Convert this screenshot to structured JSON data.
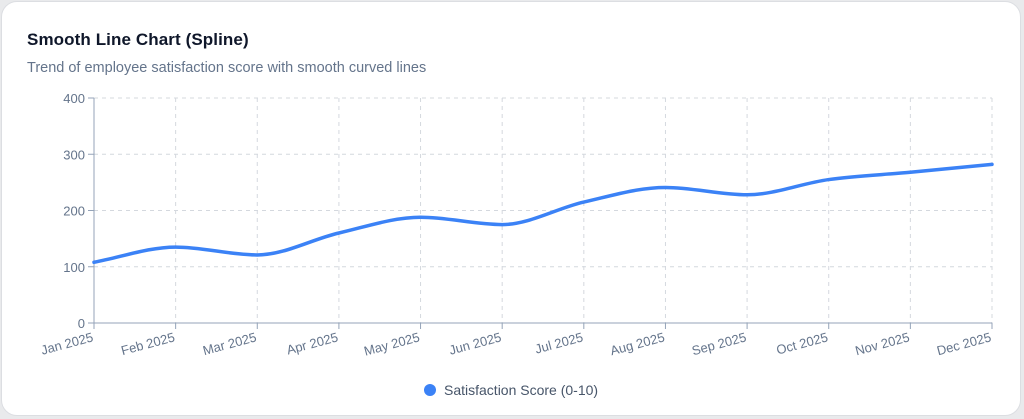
{
  "card": {
    "title": "Smooth Line Chart (Spline)",
    "subtitle": "Trend of employee satisfaction score with smooth curved lines"
  },
  "chart_data": {
    "type": "line",
    "smooth": true,
    "categories": [
      "Jan 2025",
      "Feb 2025",
      "Mar 2025",
      "Apr 2025",
      "May 2025",
      "Jun 2025",
      "Jul 2025",
      "Aug 2025",
      "Sep 2025",
      "Oct 2025",
      "Nov 2025",
      "Dec 2025"
    ],
    "series": [
      {
        "name": "Satisfaction Score (0-10)",
        "color": "#3b82f6",
        "values": [
          108,
          135,
          121,
          160,
          188,
          175,
          215,
          241,
          228,
          255,
          268,
          282
        ]
      }
    ],
    "ylim": [
      0,
      400
    ],
    "yticks": [
      0,
      100,
      200,
      300,
      400
    ],
    "grid": true,
    "legend": "bottom-center"
  }
}
